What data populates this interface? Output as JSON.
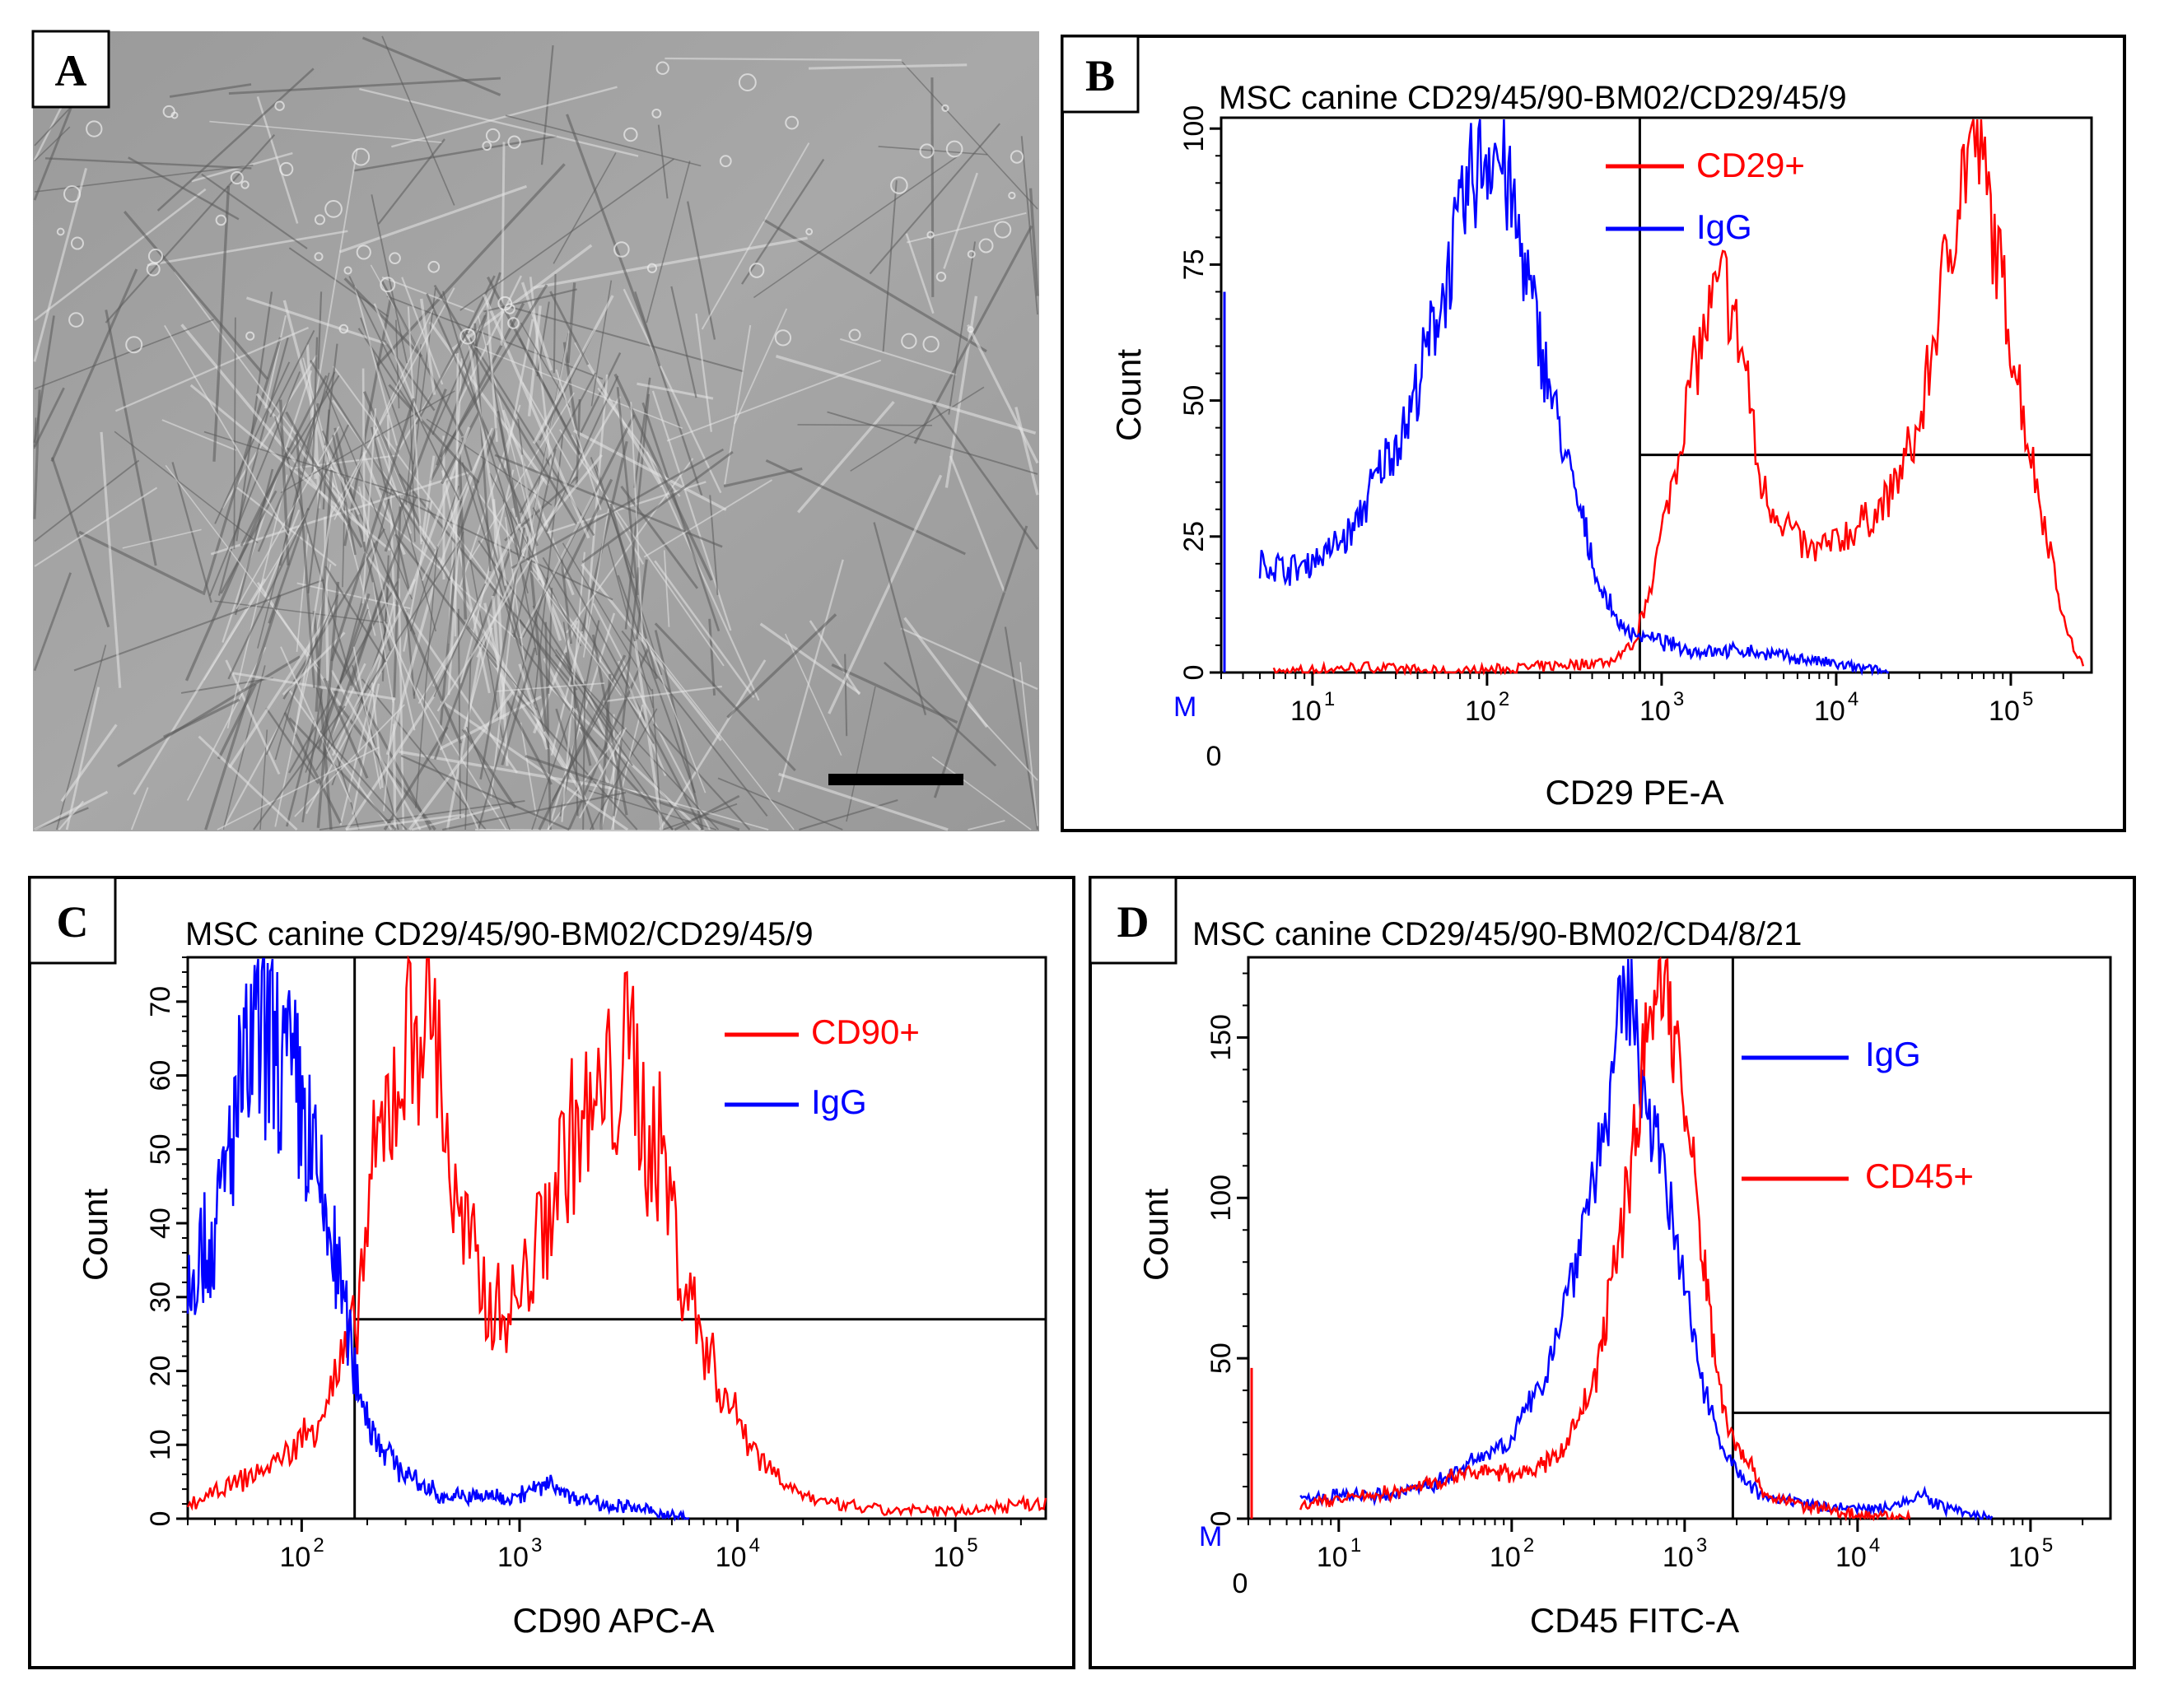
{
  "figure": {
    "panel_a": {
      "label": "A",
      "image": "phase-contrast micrograph of spindle-shaped canine mesenchymal stem cells",
      "scale_bar": "black scale bar"
    }
  },
  "chart_data": [
    {
      "id": "B",
      "panel_label": "B",
      "type": "histogram",
      "title": "MSC canine CD29/45/90-BM02/CD29/45/9",
      "xlabel": "CD29 PE-A",
      "ylabel": "Count",
      "x_scale": "log",
      "xlim": [
        0,
        290000
      ],
      "ylim": [
        0,
        102
      ],
      "yticks": [
        0,
        25,
        50,
        75,
        100
      ],
      "xticks": [
        10,
        100,
        1000,
        10000,
        100000
      ],
      "xtick_labels": [
        "10",
        "10",
        "10",
        "10",
        "10"
      ],
      "xtick_exps": [
        "1",
        "2",
        "3",
        "4",
        "5"
      ],
      "zero_label": "0",
      "m_label": "M",
      "gate": {
        "x_min": 750,
        "y": 40
      },
      "legend": [
        {
          "name": "CD29+",
          "color": "#ff0000"
        },
        {
          "name": "IgG",
          "color": "#0000ff"
        }
      ],
      "series": [
        {
          "name": "CD29+",
          "color": "#ff0000",
          "points": [
            [
              6,
              0
            ],
            [
              20,
              1
            ],
            [
              60,
              0
            ],
            [
              200,
              1
            ],
            [
              500,
              2
            ],
            [
              700,
              5
            ],
            [
              1000,
              25
            ],
            [
              1500,
              55
            ],
            [
              2000,
              68
            ],
            [
              2300,
              72
            ],
            [
              2700,
              62
            ],
            [
              3100,
              55
            ],
            [
              3500,
              38
            ],
            [
              4000,
              32
            ],
            [
              5000,
              28
            ],
            [
              7000,
              22
            ],
            [
              10000,
              24
            ],
            [
              15000,
              28
            ],
            [
              20000,
              32
            ],
            [
              30000,
              45
            ],
            [
              40000,
              70
            ],
            [
              50000,
              88
            ],
            [
              60000,
              99
            ],
            [
              70000,
              92
            ],
            [
              80000,
              80
            ],
            [
              100000,
              62
            ],
            [
              130000,
              40
            ],
            [
              170000,
              22
            ],
            [
              210000,
              7
            ],
            [
              260000,
              1
            ]
          ]
        },
        {
          "name": "IgG",
          "color": "#0000ff",
          "points": [
            [
              5,
              20
            ],
            [
              8,
              19
            ],
            [
              12,
              22
            ],
            [
              17,
              26
            ],
            [
              25,
              38
            ],
            [
              35,
              46
            ],
            [
              50,
              64
            ],
            [
              65,
              78
            ],
            [
              80,
              90
            ],
            [
              95,
              95
            ],
            [
              110,
              97
            ],
            [
              130,
              90
            ],
            [
              170,
              72
            ],
            [
              220,
              55
            ],
            [
              280,
              40
            ],
            [
              350,
              28
            ],
            [
              450,
              15
            ],
            [
              600,
              8
            ],
            [
              900,
              6
            ],
            [
              1500,
              4
            ],
            [
              3000,
              4
            ],
            [
              5000,
              3
            ],
            [
              8000,
              2
            ],
            [
              12000,
              1
            ],
            [
              20000,
              0
            ]
          ]
        }
      ]
    },
    {
      "id": "C",
      "panel_label": "C",
      "type": "histogram",
      "title": "MSC canine CD29/45/90-BM02/CD29/45/9",
      "xlabel": "CD90 APC-A",
      "ylabel": "Count",
      "x_scale": "log",
      "xlim": [
        30,
        260000
      ],
      "ylim": [
        0,
        76
      ],
      "yticks": [
        0,
        10,
        20,
        30,
        40,
        50,
        60,
        70
      ],
      "xticks": [
        100,
        1000,
        10000,
        100000
      ],
      "xtick_labels": [
        "10",
        "10",
        "10",
        "10"
      ],
      "xtick_exps": [
        "2",
        "3",
        "4",
        "5"
      ],
      "gate": {
        "x_min": 175,
        "y": 27
      },
      "legend": [
        {
          "name": "CD90+",
          "color": "#ff0000"
        },
        {
          "name": "IgG",
          "color": "#0000ff"
        }
      ],
      "series": [
        {
          "name": "CD90+",
          "color": "#ff0000",
          "points": [
            [
              30,
              2
            ],
            [
              45,
              4
            ],
            [
              60,
              6
            ],
            [
              80,
              8
            ],
            [
              110,
              12
            ],
            [
              140,
              18
            ],
            [
              175,
              25
            ],
            [
              210,
              45
            ],
            [
              260,
              58
            ],
            [
              320,
              66
            ],
            [
              380,
              72
            ],
            [
              430,
              62
            ],
            [
              500,
              42
            ],
            [
              600,
              36
            ],
            [
              700,
              30
            ],
            [
              850,
              28
            ],
            [
              1000,
              30
            ],
            [
              1300,
              40
            ],
            [
              1700,
              52
            ],
            [
              2200,
              54
            ],
            [
              2800,
              60
            ],
            [
              3300,
              63
            ],
            [
              3800,
              52
            ],
            [
              4500,
              50
            ],
            [
              5500,
              34
            ],
            [
              7000,
              24
            ],
            [
              9000,
              16
            ],
            [
              13000,
              8
            ],
            [
              18000,
              4
            ],
            [
              25000,
              2
            ],
            [
              50000,
              1
            ],
            [
              100000,
              1
            ],
            [
              200000,
              2
            ],
            [
              260000,
              2
            ]
          ]
        },
        {
          "name": "IgG",
          "color": "#0000ff",
          "points": [
            [
              30,
              34
            ],
            [
              40,
              38
            ],
            [
              50,
              55
            ],
            [
              60,
              64
            ],
            [
              70,
              66
            ],
            [
              80,
              62
            ],
            [
              95,
              58
            ],
            [
              110,
              50
            ],
            [
              130,
              40
            ],
            [
              150,
              32
            ],
            [
              175,
              20
            ],
            [
              210,
              12
            ],
            [
              260,
              8
            ],
            [
              330,
              5
            ],
            [
              450,
              3
            ],
            [
              650,
              3
            ],
            [
              900,
              3
            ],
            [
              1200,
              4
            ],
            [
              1400,
              5
            ],
            [
              1700,
              3
            ],
            [
              2500,
              2
            ],
            [
              4000,
              1
            ],
            [
              6000,
              0
            ]
          ]
        }
      ]
    },
    {
      "id": "D",
      "panel_label": "D",
      "type": "histogram",
      "title": "MSC canine CD29/45/90-BM02/CD4/8/21",
      "xlabel": "CD45 FITC-A",
      "ylabel": "Count",
      "x_scale": "log",
      "xlim": [
        0,
        290000
      ],
      "ylim": [
        0,
        175
      ],
      "yticks": [
        0,
        50,
        100,
        150
      ],
      "xticks": [
        10,
        100,
        1000,
        10000,
        100000
      ],
      "xtick_labels": [
        "10",
        "10",
        "10",
        "10",
        "10"
      ],
      "xtick_exps": [
        "1",
        "2",
        "3",
        "4",
        "5"
      ],
      "zero_label": "0",
      "m_label": "M",
      "gate": {
        "x_min": 1900,
        "y": 33
      },
      "legend": [
        {
          "name": "IgG",
          "color": "#0000ff"
        },
        {
          "name": "CD45+",
          "color": "#ff0000"
        }
      ],
      "series": [
        {
          "name": "IgG",
          "color": "#0000ff",
          "points": [
            [
              6,
              6
            ],
            [
              10,
              7
            ],
            [
              20,
              7
            ],
            [
              40,
              12
            ],
            [
              70,
              20
            ],
            [
              100,
              25
            ],
            [
              150,
              42
            ],
            [
              220,
              75
            ],
            [
              300,
              108
            ],
            [
              380,
              132
            ],
            [
              450,
              168
            ],
            [
              520,
              150
            ],
            [
              600,
              135
            ],
            [
              700,
              115
            ],
            [
              850,
              92
            ],
            [
              1000,
              70
            ],
            [
              1300,
              42
            ],
            [
              1600,
              25
            ],
            [
              2000,
              14
            ],
            [
              3000,
              6
            ],
            [
              6000,
              4
            ],
            [
              12000,
              3
            ],
            [
              20000,
              6
            ],
            [
              25000,
              7
            ],
            [
              30000,
              4
            ],
            [
              45000,
              1
            ],
            [
              60000,
              0
            ]
          ]
        },
        {
          "name": "CD45+",
          "color": "#ff0000",
          "points": [
            [
              6,
              4
            ],
            [
              10,
              6
            ],
            [
              20,
              8
            ],
            [
              40,
              12
            ],
            [
              70,
              15
            ],
            [
              100,
              14
            ],
            [
              150,
              16
            ],
            [
              200,
              22
            ],
            [
              300,
              42
            ],
            [
              400,
              80
            ],
            [
              500,
              115
            ],
            [
              600,
              148
            ],
            [
              700,
              172
            ],
            [
              800,
              165
            ],
            [
              1000,
              128
            ],
            [
              1200,
              95
            ],
            [
              1500,
              50
            ],
            [
              1800,
              28
            ],
            [
              2200,
              20
            ],
            [
              3000,
              7
            ],
            [
              5000,
              4
            ],
            [
              8000,
              2
            ],
            [
              12000,
              1
            ],
            [
              20000,
              0
            ]
          ]
        }
      ]
    }
  ]
}
